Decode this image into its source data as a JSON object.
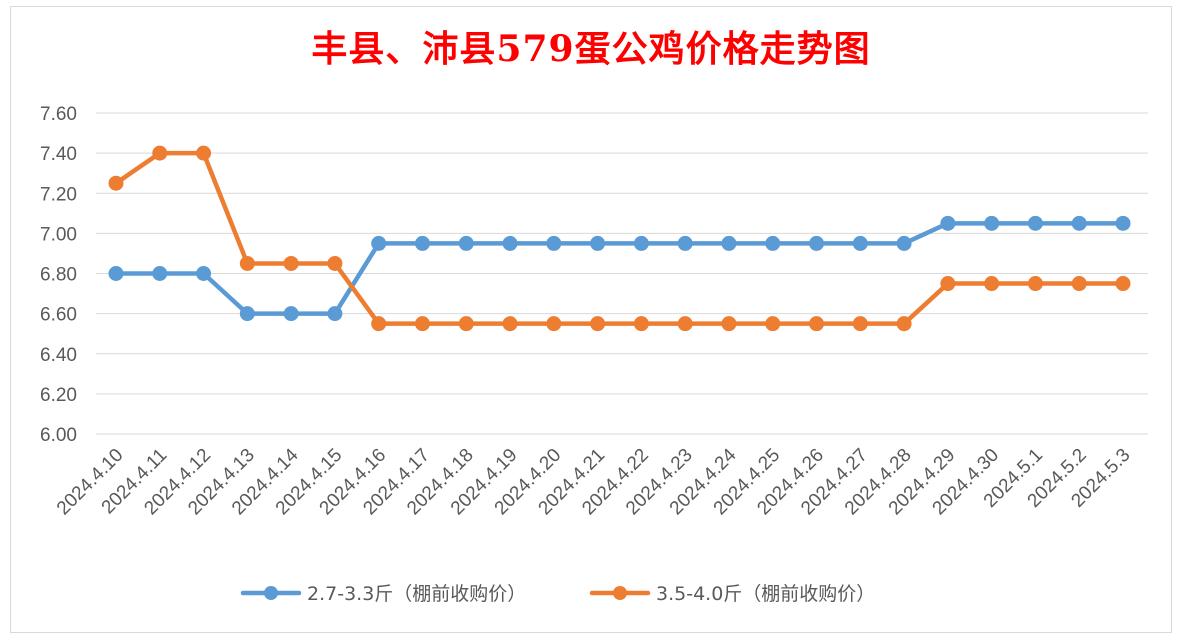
{
  "chart_data": {
    "type": "line",
    "title": "丰县、沛县579蛋公鸡价格走势图",
    "xlabel": "",
    "ylabel": "",
    "categories": [
      "2024.4.10",
      "2024.4.11",
      "2024.4.12",
      "2024.4.13",
      "2024.4.14",
      "2024.4.15",
      "2024.4.16",
      "2024.4.17",
      "2024.4.18",
      "2024.4.19",
      "2024.4.20",
      "2024.4.21",
      "2024.4.22",
      "2024.4.23",
      "2024.4.24",
      "2024.4.25",
      "2024.4.26",
      "2024.4.27",
      "2024.4.28",
      "2024.4.29",
      "2024.4.30",
      "2024.5.1",
      "2024.5.2",
      "2024.5.3"
    ],
    "ylim": [
      6.0,
      7.6
    ],
    "yticks": [
      "6.00",
      "6.20",
      "6.40",
      "6.60",
      "6.80",
      "7.00",
      "7.20",
      "7.40",
      "7.60"
    ],
    "grid": true,
    "legend_position": "bottom",
    "series": [
      {
        "name": "2.7-3.3斤（棚前收购价）",
        "color": "#5b9bd5",
        "values": [
          6.8,
          6.8,
          6.8,
          6.6,
          6.6,
          6.6,
          6.95,
          6.95,
          6.95,
          6.95,
          6.95,
          6.95,
          6.95,
          6.95,
          6.95,
          6.95,
          6.95,
          6.95,
          6.95,
          7.05,
          7.05,
          7.05,
          7.05,
          7.05
        ]
      },
      {
        "name": "3.5-4.0斤（棚前收购价）",
        "color": "#ed7d31",
        "values": [
          7.25,
          7.4,
          7.4,
          6.85,
          6.85,
          6.85,
          6.55,
          6.55,
          6.55,
          6.55,
          6.55,
          6.55,
          6.55,
          6.55,
          6.55,
          6.55,
          6.55,
          6.55,
          6.55,
          6.75,
          6.75,
          6.75,
          6.75,
          6.75
        ]
      }
    ]
  }
}
